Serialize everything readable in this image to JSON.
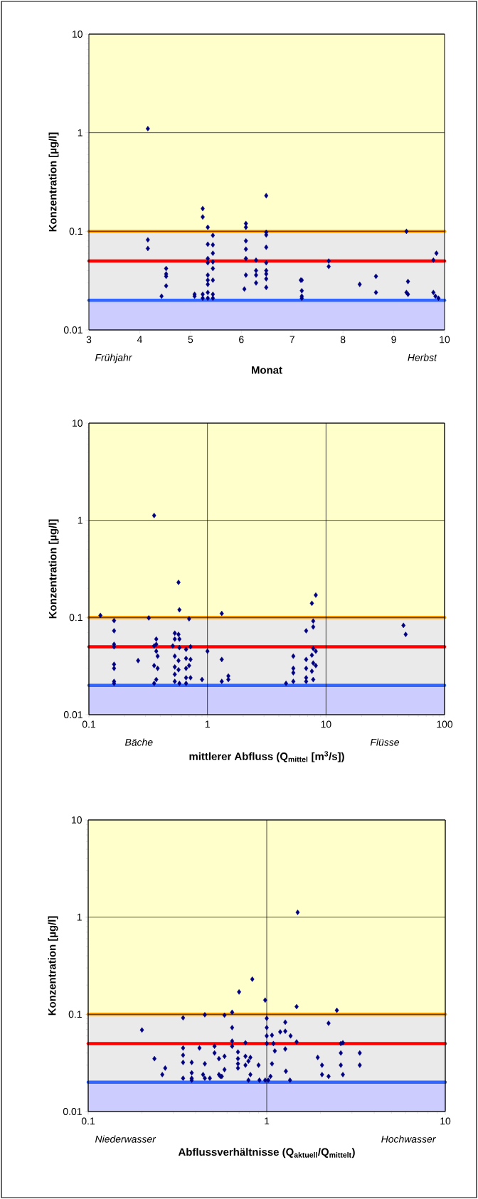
{
  "chart_data": [
    {
      "type": "scatter",
      "xlabel": "Monat",
      "ylabel": "Konzentration [µg/l]",
      "annotations": [
        "Frühjahr",
        "Herbst"
      ],
      "log": "y",
      "grid": "y",
      "marker": "diamond",
      "color": "#000080",
      "xlim": [
        3,
        10
      ],
      "xticks": [
        3,
        4,
        5,
        6,
        7,
        8,
        9,
        10
      ],
      "ylim": [
        0.01,
        10
      ],
      "yticks": [
        0.01,
        0.1,
        1,
        10
      ],
      "x": [
        4.16,
        4.16,
        4.16,
        4.43,
        4.52,
        4.52,
        4.52,
        4.52,
        5.08,
        5.08,
        5.24,
        5.24,
        5.24,
        5.24,
        5.34,
        5.34,
        5.34,
        5.34,
        5.34,
        5.34,
        5.34,
        5.34,
        5.34,
        5.44,
        5.44,
        5.44,
        5.44,
        5.44,
        5.44,
        5.44,
        5.44,
        6.09,
        6.09,
        6.09,
        6.09,
        6.09,
        6.09,
        6.06,
        6.29,
        6.29,
        6.29,
        6.29,
        6.49,
        6.49,
        6.49,
        6.49,
        6.49,
        6.49,
        6.49,
        6.49,
        6.49,
        7.17,
        7.19,
        7.19,
        7.19,
        7.19,
        7.72,
        7.72,
        8.33,
        8.65,
        8.65,
        9.25,
        9.28,
        9.25,
        9.28,
        9.78,
        9.84,
        9.78,
        9.82,
        9.88
      ],
      "values": [
        1.1,
        0.082,
        0.067,
        0.022,
        0.042,
        0.037,
        0.035,
        0.028,
        0.023,
        0.022,
        0.17,
        0.14,
        0.023,
        0.021,
        0.11,
        0.074,
        0.053,
        0.048,
        0.036,
        0.032,
        0.029,
        0.024,
        0.021,
        0.091,
        0.073,
        0.06,
        0.049,
        0.042,
        0.032,
        0.023,
        0.021,
        0.12,
        0.11,
        0.08,
        0.066,
        0.053,
        0.036,
        0.026,
        0.051,
        0.04,
        0.036,
        0.03,
        0.23,
        0.098,
        0.092,
        0.069,
        0.048,
        0.04,
        0.037,
        0.033,
        0.027,
        0.032,
        0.032,
        0.025,
        0.022,
        0.021,
        0.05,
        0.044,
        0.029,
        0.035,
        0.024,
        0.1,
        0.031,
        0.024,
        0.023,
        0.051,
        0.06,
        0.024,
        0.022,
        0.021
      ],
      "ref_lines": [
        {
          "axis": "y",
          "value": 0.1,
          "color": "#ff9900"
        },
        {
          "axis": "y",
          "value": 0.05,
          "color": "#ff0000"
        },
        {
          "axis": "y",
          "value": 0.02,
          "color": "#3366ff"
        }
      ],
      "bands": [
        {
          "axis": "y",
          "from": 0.1,
          "to": 10,
          "color": "#ffffcc"
        },
        {
          "axis": "y",
          "from": 0.02,
          "to": 0.1,
          "color": "#eaeaea"
        },
        {
          "axis": "y",
          "from": 0.01,
          "to": 0.02,
          "color": "#ccccff"
        }
      ]
    },
    {
      "type": "scatter",
      "xlabel": "mittlerer Abfluss (Q$_{mittel}$ [m$^{3}$/s])",
      "ylabel": "Konzentration [µg/l]",
      "annotations": [
        "Bäche",
        "Flüsse"
      ],
      "log": "xy",
      "grid": true,
      "marker": "diamond",
      "color": "#000080",
      "xlim": [
        0.1,
        100
      ],
      "xticks": [
        0.1,
        1,
        10,
        100
      ],
      "ylim": [
        0.01,
        10
      ],
      "yticks": [
        0.01,
        0.1,
        1,
        10
      ],
      "x": [
        0.125,
        0.163,
        0.163,
        0.163,
        0.163,
        0.163,
        0.163,
        0.163,
        0.163,
        0.26,
        0.32,
        0.355,
        0.37,
        0.37,
        0.355,
        0.37,
        0.38,
        0.355,
        0.38,
        0.37,
        0.355,
        0.51,
        0.53,
        0.53,
        0.53,
        0.53,
        0.53,
        0.53,
        0.57,
        0.57,
        0.58,
        0.58,
        0.58,
        0.57,
        0.57,
        0.58,
        0.7,
        0.72,
        0.66,
        0.66,
        0.72,
        0.7,
        0.66,
        0.66,
        0.72,
        0.66,
        0.9,
        1.0,
        1.32,
        1.32,
        1.32,
        1.5,
        1.5,
        4.6,
        5.3,
        5.3,
        5.3,
        5.3,
        6.8,
        6.8,
        6.8,
        6.8,
        6.8,
        7.6,
        8.2,
        7.8,
        7.8,
        7.8,
        8.2,
        7.6,
        7.8,
        8.2,
        7.6,
        7.8,
        45,
        47
      ],
      "values": [
        0.105,
        0.093,
        0.073,
        0.053,
        0.05,
        0.033,
        0.03,
        0.022,
        0.021,
        0.036,
        0.099,
        1.12,
        0.06,
        0.053,
        0.051,
        0.045,
        0.04,
        0.032,
        0.03,
        0.023,
        0.021,
        0.051,
        0.069,
        0.06,
        0.04,
        0.031,
        0.026,
        0.022,
        0.23,
        0.067,
        0.12,
        0.06,
        0.049,
        0.036,
        0.029,
        0.021,
        0.097,
        0.05,
        0.047,
        0.038,
        0.037,
        0.032,
        0.03,
        0.024,
        0.024,
        0.021,
        0.023,
        0.045,
        0.11,
        0.037,
        0.022,
        0.025,
        0.023,
        0.021,
        0.04,
        0.03,
        0.027,
        0.022,
        0.073,
        0.037,
        0.03,
        0.024,
        0.022,
        0.14,
        0.17,
        0.092,
        0.08,
        0.048,
        0.045,
        0.041,
        0.034,
        0.032,
        0.028,
        0.023,
        0.083,
        0.067
      ],
      "ref_lines": [
        {
          "axis": "y",
          "value": 0.1,
          "color": "#ff9900"
        },
        {
          "axis": "y",
          "value": 0.05,
          "color": "#ff0000"
        },
        {
          "axis": "y",
          "value": 0.02,
          "color": "#3366ff"
        }
      ],
      "bands": [
        {
          "axis": "y",
          "from": 0.1,
          "to": 10,
          "color": "#ffffcc"
        },
        {
          "axis": "y",
          "from": 0.02,
          "to": 0.1,
          "color": "#eaeaea"
        },
        {
          "axis": "y",
          "from": 0.01,
          "to": 0.02,
          "color": "#ccccff"
        }
      ]
    },
    {
      "type": "scatter",
      "xlabel": "Abflussverhältnisse (Q$_{aktuell}$/Q$_{mittelt}$)",
      "ylabel": "Konzentration [µg/l]",
      "annotations": [
        "Niederwasser",
        "Hochwasser"
      ],
      "log": "xy",
      "grid": true,
      "marker": "diamond",
      "color": "#000080",
      "xlim": [
        0.1,
        10
      ],
      "xticks": [
        0.1,
        1,
        10
      ],
      "ylim": [
        0.01,
        10
      ],
      "yticks": [
        0.01,
        0.1,
        1,
        10
      ],
      "x": [
        1.49,
        0.83,
        0.7,
        0.98,
        1.47,
        2.47,
        0.64,
        0.45,
        0.58,
        0.34,
        1.0,
        1.27,
        2.22,
        0.2,
        0.64,
        1.0,
        1.19,
        1.27,
        1.0,
        1.07,
        1.36,
        1.47,
        0.64,
        0.76,
        1.0,
        1.09,
        2.6,
        2.67,
        0.51,
        0.64,
        0.34,
        0.42,
        0.51,
        0.69,
        1.11,
        1.27,
        2.6,
        3.32,
        0.235,
        0.34,
        0.54,
        0.58,
        0.76,
        0.81,
        1.93,
        0.69,
        0.34,
        0.38,
        0.45,
        0.69,
        0.79,
        0.76,
        0.9,
        1.07,
        0.69,
        0.27,
        0.26,
        0.58,
        0.38,
        1.28,
        2.04,
        2.04,
        2.6,
        3.32,
        2.22,
        2.67,
        0.81,
        0.54,
        0.44,
        0.34,
        0.38,
        0.55,
        1.05,
        0.38,
        0.45,
        0.48,
        0.56,
        0.79,
        0.91,
        0.98,
        1.02,
        1.35
      ],
      "values": [
        1.12,
        0.23,
        0.17,
        0.14,
        0.12,
        0.11,
        0.105,
        0.099,
        0.098,
        0.092,
        0.091,
        0.083,
        0.081,
        0.069,
        0.073,
        0.073,
        0.066,
        0.067,
        0.06,
        0.061,
        0.06,
        0.052,
        0.053,
        0.051,
        0.05,
        0.05,
        0.05,
        0.051,
        0.047,
        0.047,
        0.045,
        0.045,
        0.04,
        0.041,
        0.042,
        0.044,
        0.04,
        0.04,
        0.035,
        0.038,
        0.035,
        0.037,
        0.037,
        0.036,
        0.036,
        0.035,
        0.032,
        0.032,
        0.031,
        0.031,
        0.033,
        0.03,
        0.03,
        0.031,
        0.028,
        0.028,
        0.024,
        0.027,
        0.025,
        0.026,
        0.03,
        0.024,
        0.03,
        0.03,
        0.023,
        0.024,
        0.024,
        0.024,
        0.024,
        0.022,
        0.022,
        0.023,
        0.023,
        0.021,
        0.022,
        0.022,
        0.023,
        0.021,
        0.021,
        0.021,
        0.021,
        0.021
      ],
      "ref_lines": [
        {
          "axis": "y",
          "value": 0.1,
          "color": "#ff9900"
        },
        {
          "axis": "y",
          "value": 0.05,
          "color": "#ff0000"
        },
        {
          "axis": "y",
          "value": 0.02,
          "color": "#3366ff"
        }
      ],
      "bands": [
        {
          "axis": "y",
          "from": 0.1,
          "to": 10,
          "color": "#ffffcc"
        },
        {
          "axis": "y",
          "from": 0.02,
          "to": 0.1,
          "color": "#eaeaea"
        },
        {
          "axis": "y",
          "from": 0.01,
          "to": 0.02,
          "color": "#ccccff"
        }
      ]
    }
  ]
}
